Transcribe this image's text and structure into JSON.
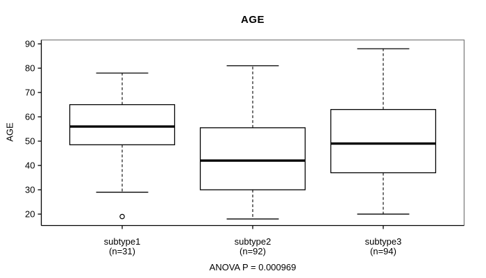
{
  "chart_data": {
    "type": "boxplot",
    "title": "AGE",
    "xlabel": "",
    "ylabel": "AGE",
    "annotation": "ANOVA P = 0.000969",
    "categories": [
      "subtype1",
      "subtype2",
      "subtype3"
    ],
    "category_counts": [
      "(n=31)",
      "(n=92)",
      "(n=94)"
    ],
    "yticks": [
      20,
      30,
      40,
      50,
      60,
      70,
      80,
      90
    ],
    "ylim": [
      15.3,
      91.6
    ],
    "grid": false,
    "legend": "none",
    "series": [
      {
        "name": "subtype1",
        "n": 31,
        "whisker_low": 29,
        "q1": 48.5,
        "median": 56,
        "q3": 65,
        "whisker_high": 78,
        "outliers": [
          19
        ]
      },
      {
        "name": "subtype2",
        "n": 92,
        "whisker_low": 18,
        "q1": 30,
        "median": 42,
        "q3": 55.5,
        "whisker_high": 81,
        "outliers": []
      },
      {
        "name": "subtype3",
        "n": 94,
        "whisker_low": 20,
        "q1": 37,
        "median": 49,
        "q3": 63,
        "whisker_high": 88,
        "outliers": []
      }
    ],
    "colors": {
      "background": "#ffffff",
      "box_stroke": "#000000",
      "box_fill": "#ffffff",
      "median": "#000000",
      "whisker": "#000000",
      "axis": "#000000",
      "frame": "#7f7f7f",
      "text": "#000000"
    }
  }
}
